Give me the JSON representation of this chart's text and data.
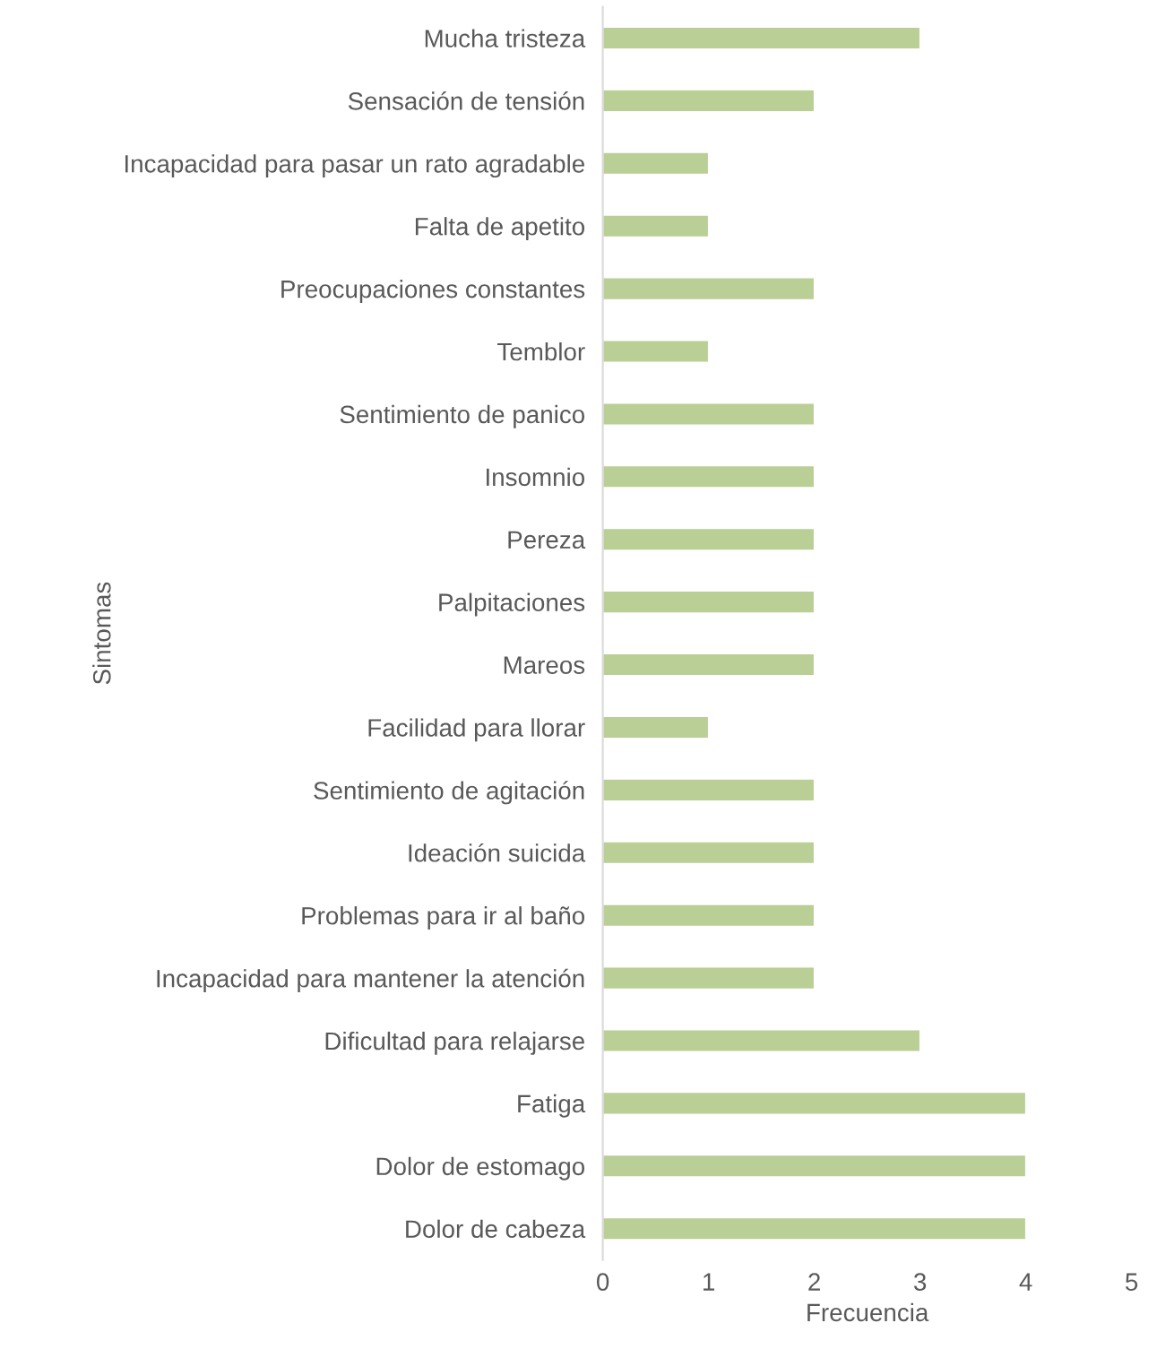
{
  "chart_data": {
    "type": "bar",
    "orientation": "horizontal",
    "xlabel": "Frecuencia",
    "ylabel": "Sintomas",
    "categories": [
      "Mucha tristeza",
      "Sensación de tensión",
      "Incapacidad para pasar un rato agradable",
      "Falta de apetito",
      "Preocupaciones constantes",
      "Temblor",
      "Sentimiento de panico",
      "Insomnio",
      "Pereza",
      "Palpitaciones",
      "Mareos",
      "Facilidad para llorar",
      "Sentimiento de agitación",
      "Ideación suicida",
      "Problemas para ir al baño",
      "Incapacidad para mantener la atención",
      "Dificultad para relajarse",
      "Fatiga",
      "Dolor de estomago",
      "Dolor de cabeza"
    ],
    "values": [
      3,
      2,
      1,
      1,
      2,
      1,
      2,
      2,
      2,
      2,
      2,
      1,
      2,
      2,
      2,
      2,
      3,
      4,
      4,
      4
    ],
    "color": "#b9cf96",
    "xlim": [
      0,
      5
    ],
    "xticks": [
      0,
      1,
      2,
      3,
      4,
      5
    ],
    "grid": false,
    "legend": false
  }
}
